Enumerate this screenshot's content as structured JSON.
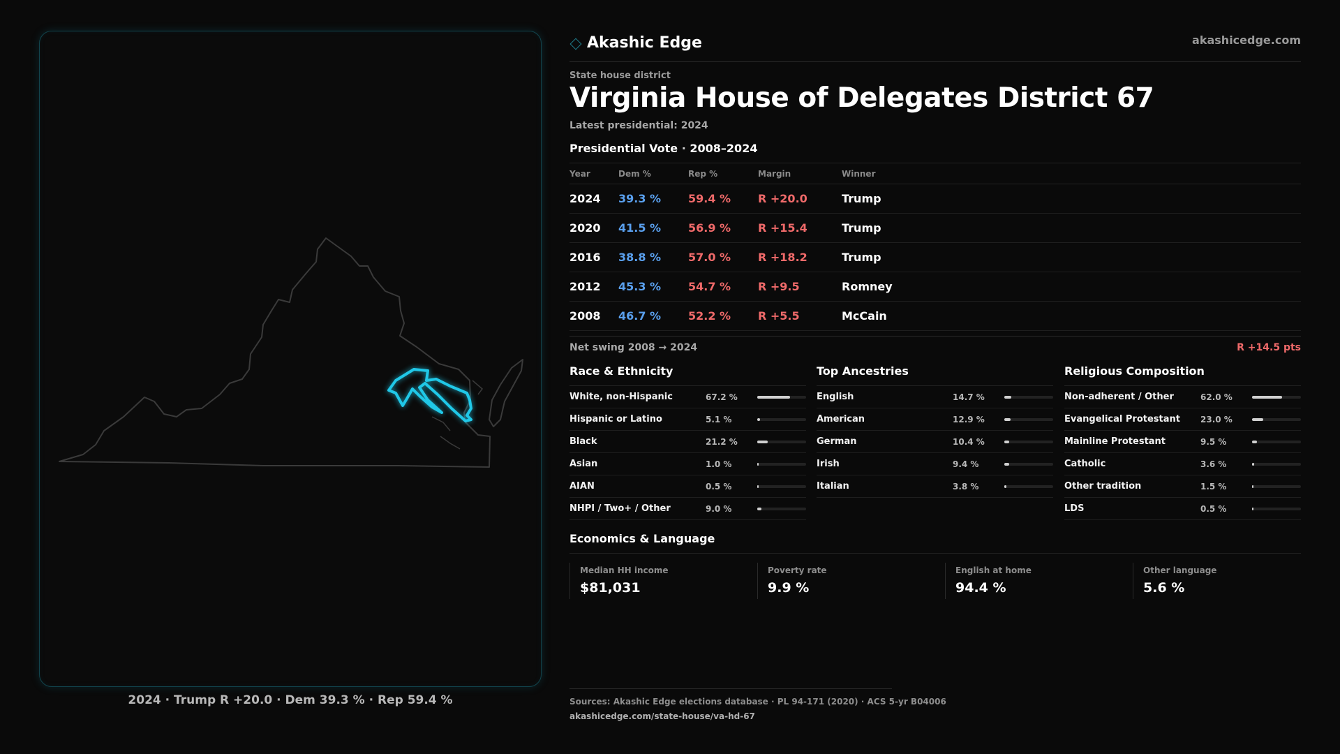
{
  "brand": {
    "name": "Akashic Edge",
    "site": "akashicedge.com",
    "diamond_icon": "diamond-outline",
    "accent": "#1f7f8f"
  },
  "header": {
    "kicker": "State house district",
    "title": "Virginia House of Delegates District 67",
    "latest": "Latest presidential: 2024"
  },
  "presidential": {
    "heading": "Presidential Vote",
    "separator": "·",
    "range": "2008–2024",
    "columns": {
      "year": "Year",
      "dem": "Dem %",
      "rep": "Rep %",
      "margin": "Margin",
      "winner": "Winner"
    },
    "rows": [
      {
        "year": "2024",
        "dem": "39.3 %",
        "rep": "59.4 %",
        "margin": "R +20.0",
        "winner": "Trump"
      },
      {
        "year": "2020",
        "dem": "41.5 %",
        "rep": "56.9 %",
        "margin": "R +15.4",
        "winner": "Trump"
      },
      {
        "year": "2016",
        "dem": "38.8 %",
        "rep": "57.0 %",
        "margin": "R +18.2",
        "winner": "Trump"
      },
      {
        "year": "2012",
        "dem": "45.3 %",
        "rep": "54.7 %",
        "margin": "R +9.5",
        "winner": "Romney"
      },
      {
        "year": "2008",
        "dem": "46.7 %",
        "rep": "52.2 %",
        "margin": "R +5.5",
        "winner": "McCain"
      }
    ],
    "colors": {
      "dem": "#5aa0ee",
      "rep": "#f06a6a"
    }
  },
  "swing": {
    "label": "Net swing 2008 → 2024",
    "value": "R +14.5 pts"
  },
  "race": {
    "title": "Race & Ethnicity",
    "rows": [
      {
        "label": "White, non-Hispanic",
        "value": "67.2 %",
        "pct": 67.2
      },
      {
        "label": "Hispanic or Latino",
        "value": "5.1 %",
        "pct": 5.1
      },
      {
        "label": "Black",
        "value": "21.2 %",
        "pct": 21.2
      },
      {
        "label": "Asian",
        "value": "1.0 %",
        "pct": 1.0
      },
      {
        "label": "AIAN",
        "value": "0.5 %",
        "pct": 0.5
      },
      {
        "label": "NHPI / Two+ / Other",
        "value": "9.0 %",
        "pct": 9.0
      }
    ]
  },
  "ancestry": {
    "title": "Top Ancestries",
    "rows": [
      {
        "label": "English",
        "value": "14.7 %",
        "pct": 14.7
      },
      {
        "label": "American",
        "value": "12.9 %",
        "pct": 12.9
      },
      {
        "label": "German",
        "value": "10.4 %",
        "pct": 10.4
      },
      {
        "label": "Irish",
        "value": "9.4 %",
        "pct": 9.4
      },
      {
        "label": "Italian",
        "value": "3.8 %",
        "pct": 3.8
      }
    ]
  },
  "religion": {
    "title": "Religious Composition",
    "rows": [
      {
        "label": "Non-adherent / Other",
        "value": "62.0 %",
        "pct": 62.0
      },
      {
        "label": "Evangelical Protestant",
        "value": "23.0 %",
        "pct": 23.0
      },
      {
        "label": "Mainline Protestant",
        "value": "9.5 %",
        "pct": 9.5
      },
      {
        "label": "Catholic",
        "value": "3.6 %",
        "pct": 3.6
      },
      {
        "label": "Other tradition",
        "value": "1.5 %",
        "pct": 1.5
      },
      {
        "label": "LDS",
        "value": "0.5 %",
        "pct": 0.5
      }
    ]
  },
  "economics": {
    "title": "Economics & Language",
    "cells": [
      {
        "label": "Median HH income",
        "value": "$81,031"
      },
      {
        "label": "Poverty rate",
        "value": "9.9 %"
      },
      {
        "label": "English at home",
        "value": "94.4 %"
      },
      {
        "label": "Other language",
        "value": "5.6 %"
      }
    ]
  },
  "sources": {
    "line1": "Sources: Akashic Edge elections database · PL 94-171 (2020) · ACS 5-yr B04006",
    "line2": "akashicedge.com/state-house/va-hd-67"
  },
  "map": {
    "caption": "2024 · Trump R +20.0 · Dem 39.3 % · Rep 59.4 %",
    "state_outline_color": "#3a3a3a",
    "district_highlight_color": "#20c8e8"
  }
}
